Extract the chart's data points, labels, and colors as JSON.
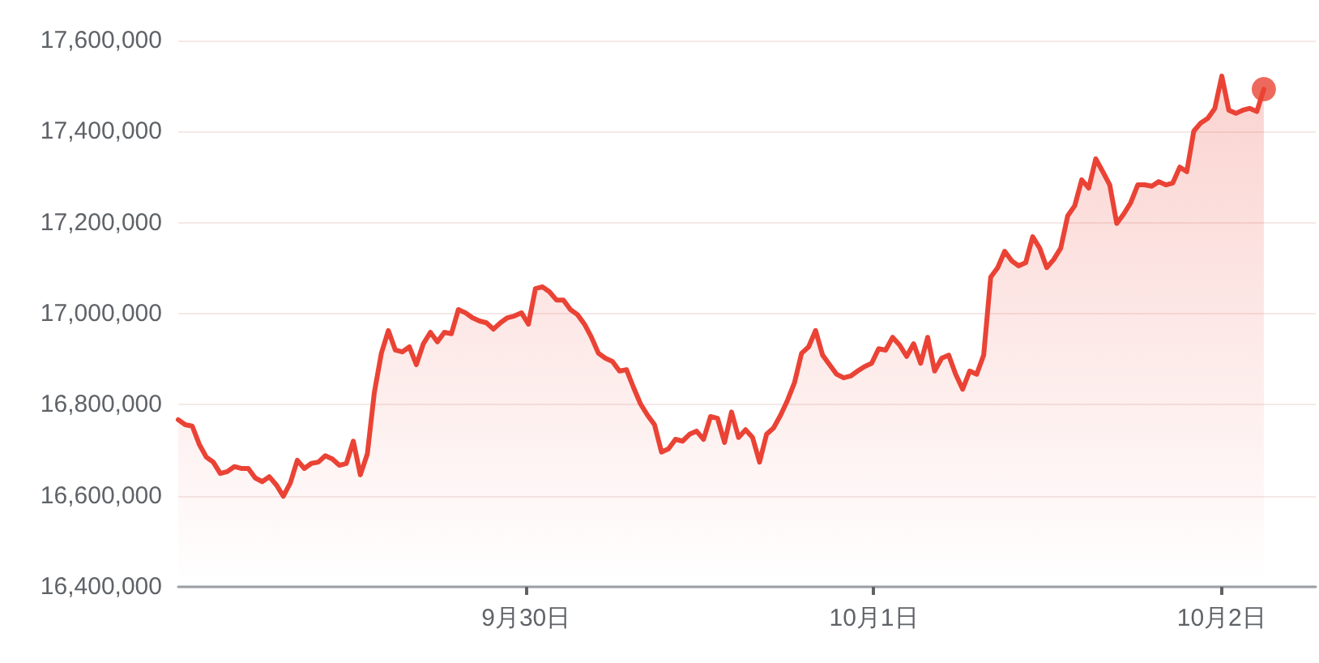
{
  "chart_data": {
    "type": "area",
    "color": "#ea4335",
    "x": [
      "--09-29T00:00",
      "--09-29T00:29",
      "--09-29T00:58",
      "--09-29T01:27",
      "--09-29T01:56",
      "--09-29T02:25",
      "--09-29T02:54",
      "--09-29T03:23",
      "--09-29T03:52",
      "--09-29T04:21",
      "--09-29T04:50",
      "--09-29T05:19",
      "--09-29T05:48",
      "--09-29T06:17",
      "--09-29T06:46",
      "--09-29T07:15",
      "--09-29T07:44",
      "--09-29T08:13",
      "--09-29T08:42",
      "--09-29T09:11",
      "--09-29T09:40",
      "--09-29T10:09",
      "--09-29T10:38",
      "--09-29T11:07",
      "--09-29T11:36",
      "--09-29T12:05",
      "--09-29T12:34",
      "--09-29T13:03",
      "--09-29T13:32",
      "--09-29T14:01",
      "--09-29T14:30",
      "--09-29T14:59",
      "--09-29T15:28",
      "--09-29T15:57",
      "--09-29T16:26",
      "--09-29T16:55",
      "--09-29T17:24",
      "--09-29T17:53",
      "--09-29T18:22",
      "--09-29T18:51",
      "--09-29T19:20",
      "--09-29T19:49",
      "--09-29T20:18",
      "--09-29T20:47",
      "--09-29T21:16",
      "--09-29T21:45",
      "--09-29T22:14",
      "--09-29T22:43",
      "--09-29T23:12",
      "--09-29T23:41",
      "--09-30T00:10",
      "--09-30T00:39",
      "--09-30T01:08",
      "--09-30T01:37",
      "--09-30T02:06",
      "--09-30T02:35",
      "--09-30T03:04",
      "--09-30T03:33",
      "--09-30T04:02",
      "--09-30T04:31",
      "--09-30T05:00",
      "--09-30T05:29",
      "--09-30T05:58",
      "--09-30T06:27",
      "--09-30T06:56",
      "--09-30T07:25",
      "--09-30T07:54",
      "--09-30T08:23",
      "--09-30T08:52",
      "--09-30T09:21",
      "--09-30T09:50",
      "--09-30T10:19",
      "--09-30T10:48",
      "--09-30T11:17",
      "--09-30T11:46",
      "--09-30T12:15",
      "--09-30T12:44",
      "--09-30T13:13",
      "--09-30T13:42",
      "--09-30T14:11",
      "--09-30T14:40",
      "--09-30T15:09",
      "--09-30T15:38",
      "--09-30T16:07",
      "--09-30T16:36",
      "--09-30T17:05",
      "--09-30T17:34",
      "--09-30T18:03",
      "--09-30T18:32",
      "--09-30T19:01",
      "--09-30T19:30",
      "--09-30T19:59",
      "--09-30T20:28",
      "--09-30T20:57",
      "--09-30T21:26",
      "--09-30T21:55",
      "--09-30T22:24",
      "--09-30T22:53",
      "--09-30T23:22",
      "--09-30T23:51",
      "--10-01T00:20",
      "--10-01T00:49",
      "--10-01T01:18",
      "--10-01T01:47",
      "--10-01T02:16",
      "--10-01T02:45",
      "--10-01T03:14",
      "--10-01T03:43",
      "--10-01T04:12",
      "--10-01T04:41",
      "--10-01T05:10",
      "--10-01T05:39",
      "--10-01T06:08",
      "--10-01T06:37",
      "--10-01T07:06",
      "--10-01T07:35",
      "--10-01T08:04",
      "--10-01T08:33",
      "--10-01T09:02",
      "--10-01T09:31",
      "--10-01T10:00",
      "--10-01T10:29",
      "--10-01T10:58",
      "--10-01T11:27",
      "--10-01T11:56",
      "--10-01T12:25",
      "--10-01T12:54",
      "--10-01T13:23",
      "--10-01T13:52",
      "--10-01T14:21",
      "--10-01T14:50",
      "--10-01T15:19",
      "--10-01T15:48",
      "--10-01T16:17",
      "--10-01T16:46",
      "--10-01T17:15",
      "--10-01T17:44",
      "--10-01T18:13",
      "--10-01T18:42",
      "--10-01T19:11",
      "--10-01T19:40",
      "--10-01T20:09",
      "--10-01T20:38",
      "--10-01T21:07",
      "--10-01T21:36",
      "--10-01T22:05",
      "--10-01T22:34",
      "--10-01T23:03",
      "--10-01T23:32",
      "--10-02T00:01",
      "--10-02T00:30",
      "--10-02T00:59",
      "--10-02T01:28",
      "--10-02T01:57",
      "--10-02T02:26",
      "--10-02T02:55"
    ],
    "values": [
      16767000,
      16756000,
      16753000,
      16713000,
      16685000,
      16674000,
      16649000,
      16653000,
      16664000,
      16660000,
      16660000,
      16639000,
      16631000,
      16642000,
      16624000,
      16599000,
      16628000,
      16678000,
      16660000,
      16671000,
      16674000,
      16688000,
      16681000,
      16667000,
      16671000,
      16720000,
      16646000,
      16692000,
      16827000,
      16913000,
      16963000,
      16920000,
      16916000,
      16927000,
      16888000,
      16934000,
      16959000,
      16938000,
      16959000,
      16956000,
      17009000,
      17002000,
      16991000,
      16984000,
      16980000,
      16966000,
      16980000,
      16991000,
      16995000,
      17002000,
      16977000,
      17055000,
      17059000,
      17048000,
      17030000,
      17030000,
      17009000,
      16998000,
      16977000,
      16948000,
      16913000,
      16902000,
      16895000,
      16874000,
      16877000,
      16838000,
      16802000,
      16777000,
      16756000,
      16696000,
      16703000,
      16724000,
      16720000,
      16735000,
      16742000,
      16724000,
      16774000,
      16770000,
      16717000,
      16784000,
      16728000,
      16745000,
      16728000,
      16674000,
      16735000,
      16749000,
      16777000,
      16810000,
      16849000,
      16913000,
      16927000,
      16963000,
      16909000,
      16888000,
      16867000,
      16859000,
      16863000,
      16874000,
      16884000,
      16891000,
      16923000,
      16920000,
      16948000,
      16931000,
      16906000,
      16934000,
      16891000,
      16948000,
      16874000,
      16902000,
      16909000,
      16867000,
      16834000,
      16874000,
      16867000,
      16909000,
      17080000,
      17101000,
      17137000,
      17116000,
      17105000,
      17112000,
      17169000,
      17144000,
      17101000,
      17119000,
      17144000,
      17215000,
      17237000,
      17294000,
      17276000,
      17340000,
      17312000,
      17283000,
      17198000,
      17219000,
      17244000,
      17283000,
      17283000,
      17280000,
      17290000,
      17283000,
      17287000,
      17322000,
      17312000,
      17401000,
      17419000,
      17429000,
      17451000,
      17522000,
      17447000,
      17440000,
      17447000,
      17451000,
      17444000,
      17493000
    ],
    "series": [
      {
        "type": "scatter",
        "marker": "circle",
        "color": "#ea4335",
        "x": [
          "--10-02T02:55"
        ],
        "values": [
          17493000
        ]
      }
    ],
    "xlim": [
      "--09-29T00:00",
      "--10-02T06:30"
    ],
    "xticks": [
      {
        "value": "--09-30",
        "label": "9月30日"
      },
      {
        "value": "--10-01",
        "label": "10月1日"
      },
      {
        "value": "--10-02",
        "label": "10月2日"
      }
    ],
    "ylim": [
      16400000,
      17600000
    ],
    "yticks": [
      {
        "value": 16400000,
        "label": "16,400,000"
      },
      {
        "value": 16600000,
        "label": "16,600,000"
      },
      {
        "value": 16800000,
        "label": "16,800,000"
      },
      {
        "value": 17000000,
        "label": "17,000,000"
      },
      {
        "value": 17200000,
        "label": "17,200,000"
      },
      {
        "value": 17400000,
        "label": "17,400,000"
      },
      {
        "value": 17600000,
        "label": "17,600,000"
      }
    ],
    "grid": "y",
    "marker": "none",
    "line_style": "solid"
  }
}
